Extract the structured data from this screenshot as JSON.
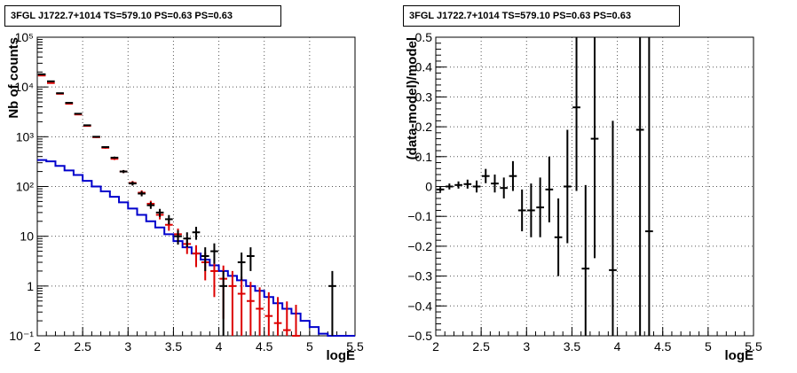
{
  "colors": {
    "data": "#000000",
    "model": "#0000cc",
    "mc": "#dd0000",
    "grid": "#555555"
  },
  "chart_data": [
    {
      "type": "line",
      "title": "3FGL J1722.7+1014 TS=579.10 PS=0.63 PS=0.63",
      "xlabel": "logE",
      "ylabel": "Nb of counts",
      "xlim": [
        2,
        5.5
      ],
      "ylim": [
        0.1,
        100000
      ],
      "yscale": "log",
      "grid": true,
      "x_ticks": [
        "2",
        "2.5",
        "3",
        "3.5",
        "4",
        "4.5",
        "5",
        "5.5"
      ],
      "y_ticks": [
        "10⁻¹",
        "1",
        "10",
        "10²",
        "10³",
        "10⁴",
        "10⁵"
      ],
      "bin_edges": [
        2.0,
        2.1,
        2.2,
        2.3,
        2.4,
        2.5,
        2.6,
        2.7,
        2.8,
        2.9,
        3.0,
        3.1,
        3.2,
        3.3,
        3.4,
        3.5,
        3.6,
        3.7,
        3.8,
        3.9,
        4.0,
        4.1,
        4.2,
        4.3,
        4.4,
        4.5,
        4.6,
        4.7,
        4.8,
        4.9,
        5.0,
        5.1,
        5.2,
        5.3,
        5.4,
        5.5
      ],
      "series": [
        {
          "name": "model",
          "style": "step",
          "values": [
            340,
            320,
            260,
            210,
            170,
            130,
            100,
            80,
            62,
            48,
            36,
            27,
            20,
            15,
            11,
            8,
            6,
            4.5,
            3.4,
            2.6,
            2.0,
            1.6,
            1.3,
            1.0,
            0.8,
            0.6,
            0.45,
            0.35,
            0.28,
            0.2,
            0.15,
            0.11,
            0.1,
            0.1,
            0.1
          ]
        },
        {
          "name": "counts",
          "style": "errorbar",
          "points": [
            {
              "x": 2.05,
              "y": 18000,
              "err": 134
            },
            {
              "x": 2.15,
              "y": 13000,
              "err": 114
            },
            {
              "x": 2.25,
              "y": 7500,
              "err": 87
            },
            {
              "x": 2.35,
              "y": 4800,
              "err": 69
            },
            {
              "x": 2.45,
              "y": 2900,
              "err": 54
            },
            {
              "x": 2.55,
              "y": 1700,
              "err": 41
            },
            {
              "x": 2.65,
              "y": 1000,
              "err": 32
            },
            {
              "x": 2.75,
              "y": 620,
              "err": 25
            },
            {
              "x": 2.85,
              "y": 380,
              "err": 19
            },
            {
              "x": 2.95,
              "y": 200,
              "err": 14
            },
            {
              "x": 3.05,
              "y": 115,
              "err": 10.7
            },
            {
              "x": 3.15,
              "y": 72,
              "err": 8.5
            },
            {
              "x": 3.25,
              "y": 42,
              "err": 6.5
            },
            {
              "x": 3.35,
              "y": 30,
              "err": 5.5
            },
            {
              "x": 3.45,
              "y": 22,
              "err": 4.7
            },
            {
              "x": 3.55,
              "y": 10,
              "err": 3.2
            },
            {
              "x": 3.65,
              "y": 9,
              "err": 3.0
            },
            {
              "x": 3.75,
              "y": 12,
              "err": 3.5
            },
            {
              "x": 3.85,
              "y": 4,
              "err": 2.0
            },
            {
              "x": 3.95,
              "y": 5,
              "err": 2.2
            },
            {
              "x": 4.05,
              "y": 1,
              "err": 1.0
            },
            {
              "x": 4.25,
              "y": 3,
              "err": 1.7
            },
            {
              "x": 4.35,
              "y": 4,
              "err": 2.0
            },
            {
              "x": 5.25,
              "y": 1,
              "err": 1.0
            }
          ]
        },
        {
          "name": "mc",
          "style": "errorbar",
          "points": [
            {
              "x": 2.05,
              "y": 17000,
              "err": 130
            },
            {
              "x": 2.15,
              "y": 12000,
              "err": 110
            },
            {
              "x": 2.25,
              "y": 7300,
              "err": 85
            },
            {
              "x": 2.35,
              "y": 4600,
              "err": 68
            },
            {
              "x": 2.45,
              "y": 2800,
              "err": 53
            },
            {
              "x": 2.55,
              "y": 1650,
              "err": 41
            },
            {
              "x": 2.65,
              "y": 980,
              "err": 31
            },
            {
              "x": 2.75,
              "y": 600,
              "err": 24
            },
            {
              "x": 2.85,
              "y": 360,
              "err": 19
            },
            {
              "x": 2.95,
              "y": 200,
              "err": 14
            },
            {
              "x": 3.05,
              "y": 118,
              "err": 10.9
            },
            {
              "x": 3.15,
              "y": 75,
              "err": 8.7
            },
            {
              "x": 3.25,
              "y": 45,
              "err": 6.7
            },
            {
              "x": 3.35,
              "y": 27,
              "err": 5.2
            },
            {
              "x": 3.45,
              "y": 17,
              "err": 4.1
            },
            {
              "x": 3.55,
              "y": 11,
              "err": 3.3
            },
            {
              "x": 3.65,
              "y": 7,
              "err": 2.6
            },
            {
              "x": 3.75,
              "y": 4.5,
              "err": 2.1
            },
            {
              "x": 3.85,
              "y": 3,
              "err": 1.7
            },
            {
              "x": 3.95,
              "y": 2,
              "err": 1.4
            },
            {
              "x": 4.05,
              "y": 1.4,
              "err": 1.18
            },
            {
              "x": 4.15,
              "y": 1.0,
              "err": 1.0
            },
            {
              "x": 4.25,
              "y": 0.7,
              "err": 0.84
            },
            {
              "x": 4.35,
              "y": 0.5,
              "err": 0.71
            },
            {
              "x": 4.45,
              "y": 0.35,
              "err": 0.59
            },
            {
              "x": 4.55,
              "y": 0.25,
              "err": 0.5
            },
            {
              "x": 4.65,
              "y": 0.18,
              "err": 0.42
            },
            {
              "x": 4.75,
              "y": 0.13,
              "err": 0.36
            },
            {
              "x": 4.85,
              "y": 0.1,
              "err": 0.32
            }
          ]
        }
      ]
    },
    {
      "type": "scatter",
      "title": "3FGL J1722.7+1014 TS=579.10 PS=0.63 PS=0.63",
      "xlabel": "logE",
      "ylabel": "(data-model)/model",
      "xlim": [
        2,
        5.5
      ],
      "ylim": [
        -0.5,
        0.5
      ],
      "grid": true,
      "x_ticks": [
        "2",
        "2.5",
        "3",
        "3.5",
        "4",
        "4.5",
        "5",
        "5.5"
      ],
      "y_ticks": [
        "−0.5",
        "−0.4",
        "−0.3",
        "−0.2",
        "−0.1",
        "0",
        "0.1",
        "0.2",
        "0.3",
        "0.4",
        "0.5"
      ],
      "y_tick_values": [
        -0.5,
        -0.4,
        -0.3,
        -0.2,
        -0.1,
        0,
        0.1,
        0.2,
        0.3,
        0.4,
        0.5
      ],
      "points": [
        {
          "x": 2.05,
          "y": -0.01,
          "err": 0.008
        },
        {
          "x": 2.15,
          "y": 0.0,
          "err": 0.01
        },
        {
          "x": 2.25,
          "y": 0.005,
          "err": 0.012
        },
        {
          "x": 2.35,
          "y": 0.008,
          "err": 0.015
        },
        {
          "x": 2.45,
          "y": 0.0,
          "err": 0.02
        },
        {
          "x": 2.55,
          "y": 0.035,
          "err": 0.024
        },
        {
          "x": 2.65,
          "y": 0.01,
          "err": 0.03
        },
        {
          "x": 2.75,
          "y": -0.005,
          "err": 0.035
        },
        {
          "x": 2.85,
          "y": 0.035,
          "err": 0.05
        },
        {
          "x": 2.95,
          "y": -0.08,
          "err": 0.07
        },
        {
          "x": 3.05,
          "y": -0.08,
          "err": 0.09
        },
        {
          "x": 3.15,
          "y": -0.07,
          "err": 0.1
        },
        {
          "x": 3.25,
          "y": -0.01,
          "err": 0.11
        },
        {
          "x": 3.35,
          "y": -0.17,
          "err": 0.13
        },
        {
          "x": 3.45,
          "y": 0.0,
          "err": 0.19
        },
        {
          "x": 3.55,
          "y": 0.265,
          "err": 0.28
        },
        {
          "x": 3.65,
          "y": -0.275,
          "err": 0.28
        },
        {
          "x": 3.75,
          "y": 0.16,
          "err": 0.4
        },
        {
          "x": 3.95,
          "y": -0.28,
          "err": 0.5
        },
        {
          "x": 4.25,
          "y": 0.19,
          "err": 0.75
        },
        {
          "x": 4.35,
          "y": -0.15,
          "err": 0.8
        }
      ]
    }
  ]
}
